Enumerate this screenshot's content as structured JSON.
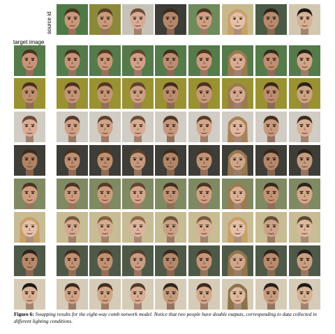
{
  "source_label": "source id",
  "target_label": "target image",
  "caption": {
    "label": "Figure 6:",
    "text": "Swapping results for the eight-way comb network model. Notice that two people have double outputs, corresponding to data collected in different lighting conditions."
  },
  "sources": [
    {
      "bg": "#4f7a45",
      "skin": "#c9977a",
      "hair": "#4a3221",
      "long": false
    },
    {
      "bg": "#8a8a3a",
      "skin": "#c99a78",
      "hair": "#5a3d28",
      "long": false
    },
    {
      "bg": "#c7c2b8",
      "skin": "#d8ab94",
      "hair": "#6d4c36",
      "long": false
    },
    {
      "bg": "#3d3d38",
      "skin": "#b5876a",
      "hair": "#3b2a1e",
      "long": false
    },
    {
      "bg": "#6f8b5b",
      "skin": "#cfa083",
      "hair": "#4e3424",
      "long": false
    },
    {
      "bg": "#c7b98d",
      "skin": "#e4c0a8",
      "hair": "#c8a168",
      "long": true
    },
    {
      "bg": "#4b5a45",
      "skin": "#b98a6c",
      "hair": "#2e2219",
      "long": false
    },
    {
      "bg": "#d2c7b0",
      "skin": "#d7b193",
      "hair": "#1e1a16",
      "long": false
    }
  ],
  "targets": [
    {
      "bg": "#547b49",
      "skin": "#c99378",
      "hair": "#4a3221",
      "long": false
    },
    {
      "bg": "#9a9232",
      "skin": "#bf9170",
      "hair": "#4a3020",
      "long": false
    },
    {
      "bg": "#d1ccc4",
      "skin": "#d9ad96",
      "hair": "#6d4c36",
      "long": false
    },
    {
      "bg": "#3e3d37",
      "skin": "#b08366",
      "hair": "#3b2a1e",
      "long": false
    },
    {
      "bg": "#7f8a62",
      "skin": "#cf9f80",
      "hair": "#4e3424",
      "long": false
    },
    {
      "bg": "#c8bc95",
      "skin": "#e4c0a8",
      "hair": "#c8a168",
      "long": true
    },
    {
      "bg": "#4e5a47",
      "skin": "#b8896b",
      "hair": "#2e2219",
      "long": false
    },
    {
      "bg": "#d6cbb6",
      "skin": "#d8b294",
      "hair": "#1e1a16",
      "long": false
    }
  ]
}
